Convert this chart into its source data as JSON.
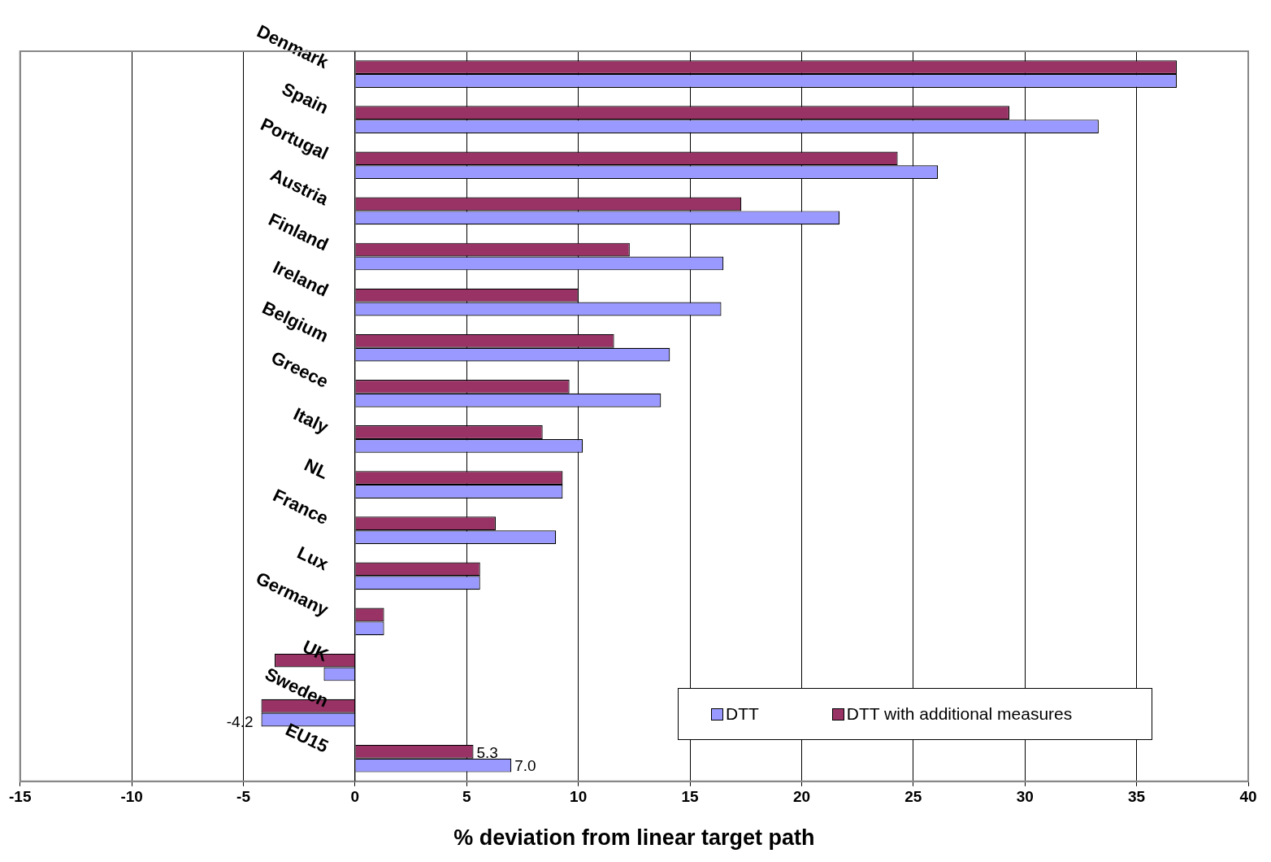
{
  "chart_data": {
    "type": "bar",
    "orientation": "horizontal",
    "xlabel": "% deviation from linear target path",
    "categories": [
      "Denmark",
      "Spain",
      "Portugal",
      "Austria",
      "Finland",
      "Ireland",
      "Belgium",
      "Greece",
      "Italy",
      "NL",
      "France",
      "Lux",
      "Germany",
      "UK",
      "Sweden",
      "EU15"
    ],
    "series": [
      {
        "name": "DTT",
        "color": "#9999ff",
        "values": [
          36.8,
          33.3,
          26.1,
          21.7,
          16.5,
          16.4,
          14.1,
          13.7,
          10.2,
          9.3,
          9.0,
          5.6,
          1.3,
          -1.4,
          -4.2,
          7.0
        ],
        "value_labels": [
          null,
          null,
          null,
          null,
          null,
          null,
          null,
          null,
          null,
          null,
          null,
          null,
          null,
          null,
          "-4.2",
          "7.0"
        ]
      },
      {
        "name": "DTT with additional measures",
        "color": "#993366",
        "values": [
          36.8,
          29.3,
          24.3,
          17.3,
          12.3,
          10.0,
          11.6,
          9.6,
          8.4,
          9.3,
          6.3,
          5.6,
          1.3,
          -3.6,
          -4.2,
          5.3
        ],
        "value_labels": [
          null,
          null,
          null,
          null,
          null,
          null,
          null,
          null,
          null,
          null,
          null,
          null,
          null,
          null,
          null,
          "5.3"
        ]
      }
    ],
    "xlim": [
      -15,
      40
    ],
    "xticks": [
      -15,
      -10,
      -5,
      0,
      5,
      10,
      15,
      20,
      25,
      30,
      35,
      40
    ],
    "grid": "x",
    "legend": "bottom right"
  }
}
